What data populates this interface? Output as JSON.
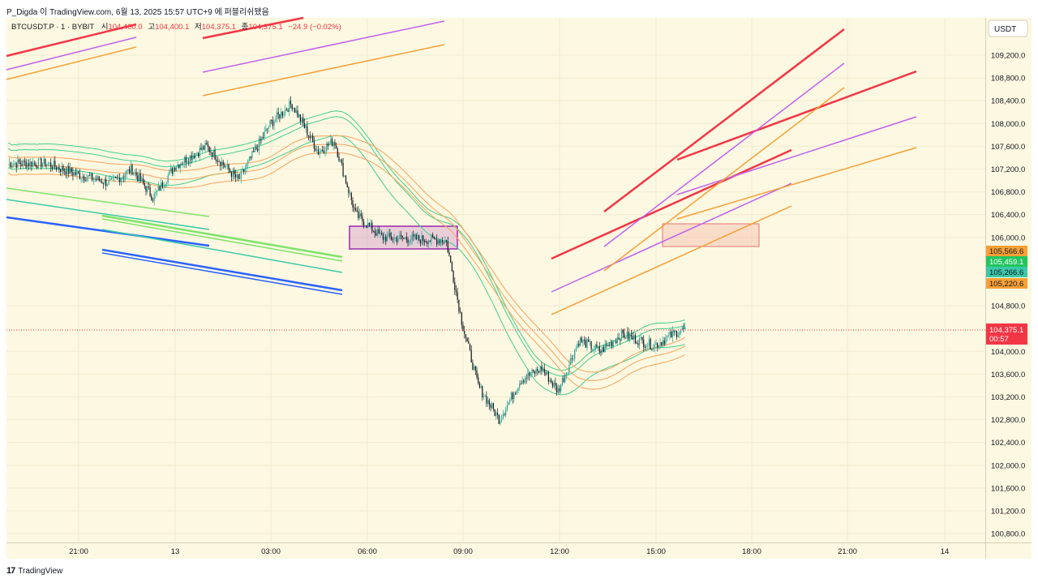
{
  "header": {
    "publish_line": "P_Digda 이 TradingView.com, 6월 13, 2025 15:57 UTC+9 에 퍼블리쉬됐음"
  },
  "legend": {
    "symbol": "BTCUSDT.P · 1 · BYBIT",
    "open_label": "시",
    "open_value": "104,400.0",
    "high_label": "고",
    "high_value": "104,400.1",
    "low_label": "저",
    "low_value": "104,375.1",
    "close_label": "종",
    "close_value": "104,375.1",
    "change": "−24.9 (−0.02%)"
  },
  "footer": {
    "brand": "TradingView"
  },
  "colors": {
    "background": "#fdf8e1",
    "grid": "#f0ead0",
    "candle_up": "#26a69a",
    "candle_down": "#131722",
    "price_red": "#f23645",
    "band_green": "#3fcf8e",
    "band_orange": "#f7a35c",
    "line_red": "#f23645",
    "line_purple": "#c060f0",
    "line_orange": "#f7a035",
    "line_green": "#7fe36a",
    "line_teal": "#3cc9a8",
    "line_blue": "#2962ff",
    "box_purple": "#9c27b0",
    "box_pink": "#f28b82"
  },
  "chart_data": {
    "type": "candlestick",
    "symbol": "BTCUSDT.P",
    "interval": "1",
    "exchange": "BYBIT",
    "currency": "USDT",
    "ylim": [
      100600,
      109600
    ],
    "x_ticks": [
      "21:00",
      "13",
      "03:00",
      "06:00",
      "09:00",
      "12:00",
      "15:00",
      "18:00",
      "21:00",
      "14"
    ],
    "y_ticks": [
      "109,200.0",
      "108,800.0",
      "108,400.0",
      "108,000.0",
      "107,600.0",
      "107,200.0",
      "106,800.0",
      "106,400.0",
      "106,000.0",
      "104,800.0",
      "104,000.0",
      "103,600.0",
      "103,200.0",
      "102,800.0",
      "102,400.0",
      "102,000.0",
      "101,600.0",
      "101,200.0",
      "100,800.0"
    ],
    "y_tick_values": [
      109200,
      108800,
      108400,
      108000,
      107600,
      107200,
      106800,
      106400,
      106000,
      104800,
      104000,
      103600,
      103200,
      102800,
      102400,
      102000,
      101600,
      101200,
      100800
    ],
    "price_labels": [
      {
        "value": 105566.6,
        "text": "105,566.6",
        "color": "#f7a035"
      },
      {
        "value": 105459.1,
        "text": "105,459.1",
        "color": "#22c55e"
      },
      {
        "value": 105266.6,
        "text": "105,266.6",
        "color": "#3cc9a8"
      },
      {
        "value": 105220.6,
        "text": "105,220.6",
        "color": "#f7a035"
      }
    ],
    "last_price": {
      "value": 104375.1,
      "text": "104,375.1",
      "countdown": "00:57"
    },
    "price_path": [
      {
        "t": "20:00",
        "p": 107300
      },
      {
        "t": "21:00",
        "p": 107100
      },
      {
        "t": "22:00",
        "p": 106950
      },
      {
        "t": "22:40",
        "p": 107200
      },
      {
        "t": "23:20",
        "p": 106700
      },
      {
        "t": "00:00",
        "p": 107250
      },
      {
        "t": "01:00",
        "p": 107600
      },
      {
        "t": "02:00",
        "p": 107000
      },
      {
        "t": "03:00",
        "p": 108000
      },
      {
        "t": "03:40",
        "p": 108350
      },
      {
        "t": "04:30",
        "p": 107500
      },
      {
        "t": "05:00",
        "p": 107700
      },
      {
        "t": "05:40",
        "p": 106400
      },
      {
        "t": "06:30",
        "p": 106000
      },
      {
        "t": "08:30",
        "p": 105950
      },
      {
        "t": "09:00",
        "p": 104500
      },
      {
        "t": "09:30",
        "p": 103400
      },
      {
        "t": "10:10",
        "p": 102800
      },
      {
        "t": "10:50",
        "p": 103500
      },
      {
        "t": "11:30",
        "p": 103700
      },
      {
        "t": "12:00",
        "p": 103300
      },
      {
        "t": "12:40",
        "p": 104200
      },
      {
        "t": "13:20",
        "p": 104000
      },
      {
        "t": "14:00",
        "p": 104300
      },
      {
        "t": "15:00",
        "p": 104100
      },
      {
        "t": "15:50",
        "p": 104375.1
      }
    ]
  }
}
